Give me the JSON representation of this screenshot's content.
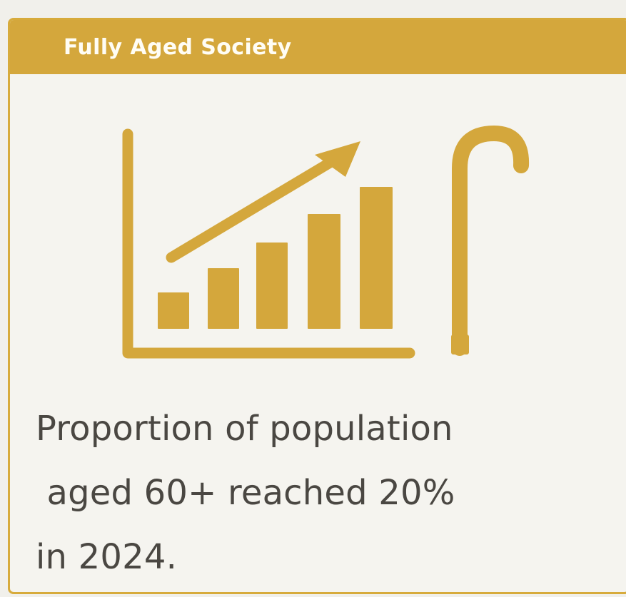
{
  "card": {
    "title": "Fully Aged Society",
    "accent_color": "#d4a73c",
    "border_color": "#d7ab3c",
    "background_color": "#f5f4ef"
  },
  "illustration": {
    "icon_name": "rising-bar-chart-with-walking-cane-icon",
    "color": "#d4a73c"
  },
  "caption": {
    "line_1": "Proportion of population",
    "line_2": " aged 60+ reached 20%",
    "line_3": "in 2024."
  }
}
